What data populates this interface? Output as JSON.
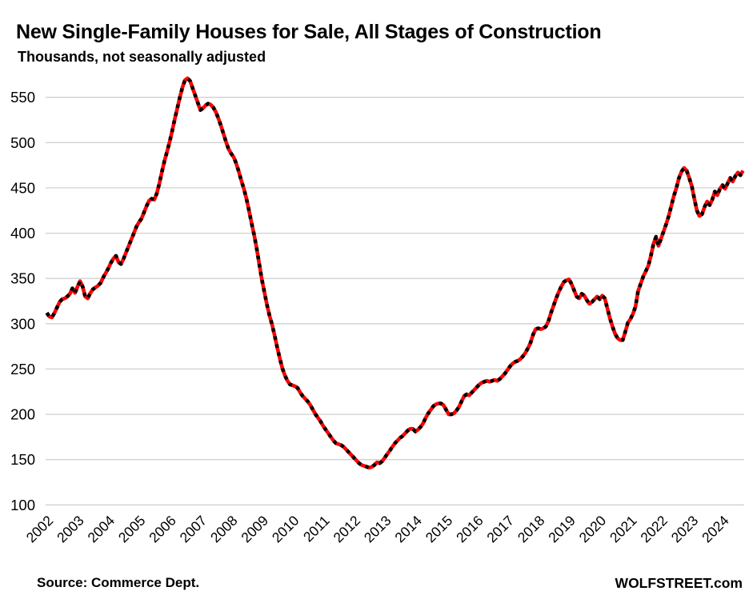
{
  "page": {
    "title": "New Single-Family Houses for Sale, All Stages of Construction",
    "subtitle": "Thousands, not seasonally adjusted",
    "source_note": "Source: Commerce Dept.",
    "brand": "WOLFSTREET.com"
  },
  "chart_data": {
    "type": "line",
    "title": "New Single-Family Houses for Sale, All Stages of Construction",
    "subtitle": "Thousands, not seasonally adjusted",
    "unit": "thousands of houses, not seasonally adjusted",
    "frequency": "monthly",
    "x_start": "2002-01",
    "x_end": "2024-09",
    "x_tick_labels": [
      "2002",
      "2003",
      "2004",
      "2005",
      "2006",
      "2007",
      "2008",
      "2009",
      "2010",
      "2011",
      "2012",
      "2013",
      "2014",
      "2015",
      "2016",
      "2017",
      "2018",
      "2019",
      "2020",
      "2021",
      "2022",
      "2023",
      "2024"
    ],
    "y_ticks": [
      100,
      150,
      200,
      250,
      300,
      350,
      400,
      450,
      500,
      550
    ],
    "ylim": [
      100,
      580
    ],
    "grid": "horizontal",
    "legend": "none",
    "colors": {
      "line": "#ff0000",
      "dash_overlay": "#000000",
      "grid": "#d0d0d0",
      "text": "#000000",
      "background": "#ffffff"
    },
    "series": [
      {
        "name": "New single-family houses for sale, all stages of construction (thousands)",
        "values": [
          312,
          308,
          307,
          312,
          318,
          324,
          327,
          328,
          330,
          333,
          339,
          334,
          341,
          347,
          341,
          330,
          328,
          334,
          338,
          340,
          342,
          345,
          351,
          356,
          361,
          367,
          372,
          375,
          368,
          366,
          372,
          379,
          386,
          393,
          400,
          407,
          412,
          416,
          423,
          430,
          436,
          438,
          437,
          444,
          455,
          468,
          480,
          490,
          501,
          513,
          526,
          538,
          550,
          561,
          569,
          571,
          568,
          560,
          552,
          544,
          536,
          538,
          541,
          543,
          542,
          539,
          534,
          527,
          519,
          510,
          501,
          493,
          488,
          484,
          477,
          468,
          458,
          449,
          438,
          425,
          411,
          398,
          383,
          366,
          349,
          335,
          321,
          309,
          299,
          287,
          274,
          262,
          251,
          243,
          237,
          233,
          232,
          231,
          229,
          224,
          220,
          217,
          214,
          210,
          205,
          200,
          196,
          192,
          187,
          183,
          179,
          175,
          171,
          168,
          167,
          166,
          164,
          161,
          158,
          155,
          152,
          149,
          146,
          144,
          143,
          142,
          141,
          142,
          144,
          147,
          146,
          148,
          152,
          156,
          160,
          164,
          168,
          171,
          174,
          176,
          179,
          182,
          184,
          184,
          181,
          183,
          186,
          190,
          196,
          201,
          205,
          209,
          211,
          212,
          212,
          210,
          205,
          200,
          200,
          201,
          204,
          208,
          214,
          220,
          222,
          221,
          224,
          227,
          230,
          233,
          235,
          236,
          237,
          236,
          237,
          238,
          237,
          239,
          242,
          245,
          249,
          253,
          256,
          258,
          259,
          261,
          264,
          268,
          273,
          279,
          288,
          294,
          295,
          294,
          295,
          297,
          303,
          312,
          320,
          328,
          335,
          341,
          346,
          348,
          349,
          344,
          337,
          330,
          328,
          333,
          331,
          326,
          322,
          324,
          327,
          330,
          327,
          331,
          328,
          317,
          306,
          297,
          289,
          284,
          282,
          282,
          291,
          301,
          305,
          311,
          319,
          336,
          344,
          352,
          358,
          364,
          375,
          388,
          396,
          386,
          394,
          402,
          410,
          419,
          430,
          441,
          450,
          461,
          468,
          472,
          469,
          461,
          452,
          438,
          425,
          419,
          421,
          429,
          435,
          431,
          437,
          446,
          442,
          449,
          453,
          449,
          455,
          461,
          457,
          463,
          467,
          464,
          469
        ]
      }
    ]
  }
}
